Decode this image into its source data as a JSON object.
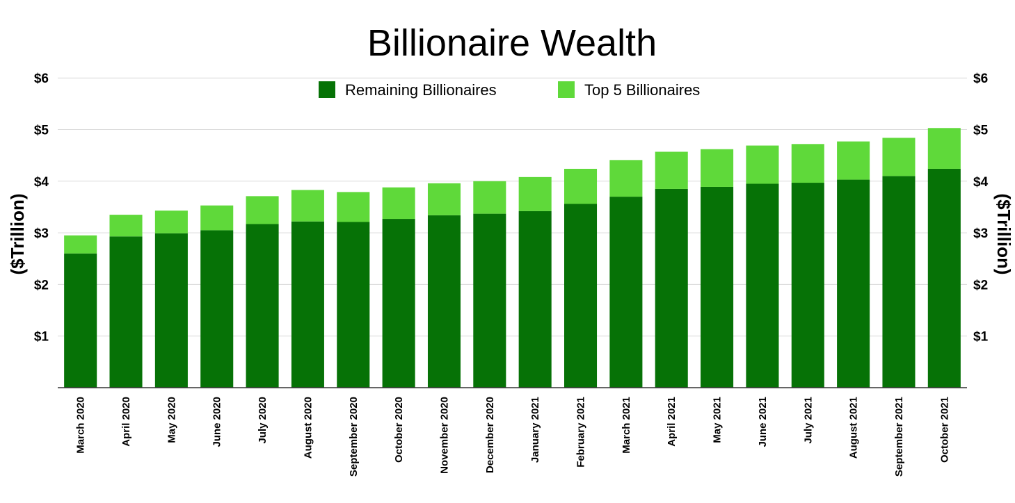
{
  "chart_data": {
    "type": "bar",
    "stacked": true,
    "title": "Billionaire Wealth",
    "ylabel_left": "($Trillion)",
    "ylabel_right": "($Trillion)",
    "ylim": [
      0,
      6
    ],
    "yticks": [
      1,
      2,
      3,
      4,
      5,
      6
    ],
    "ytick_labels": [
      "$1",
      "$2",
      "$3",
      "$4",
      "$5",
      "$6"
    ],
    "grid": true,
    "legend_position": "top-center",
    "categories": [
      "March 2020",
      "April 2020",
      "May 2020",
      "June 2020",
      "July 2020",
      "August 2020",
      "September 2020",
      "October 2020",
      "November 2020",
      "December 2020",
      "January 2021",
      "February 2021",
      "March 2021",
      "April 2021",
      "May 2021",
      "June 2021",
      "July 2021",
      "August 2021",
      "September 2021",
      "October 2021"
    ],
    "series": [
      {
        "name": "Remaining Billionaires",
        "color": "#067206",
        "values": [
          2.6,
          2.93,
          2.99,
          3.05,
          3.17,
          3.22,
          3.21,
          3.27,
          3.34,
          3.37,
          3.42,
          3.56,
          3.7,
          3.85,
          3.89,
          3.95,
          3.97,
          4.03,
          4.1,
          4.24
        ]
      },
      {
        "name": "Top 5 Billionaires",
        "color": "#5fd93a",
        "values": [
          0.35,
          0.42,
          0.44,
          0.48,
          0.54,
          0.61,
          0.58,
          0.61,
          0.62,
          0.63,
          0.66,
          0.68,
          0.71,
          0.72,
          0.73,
          0.74,
          0.75,
          0.74,
          0.74,
          0.79
        ]
      }
    ]
  }
}
